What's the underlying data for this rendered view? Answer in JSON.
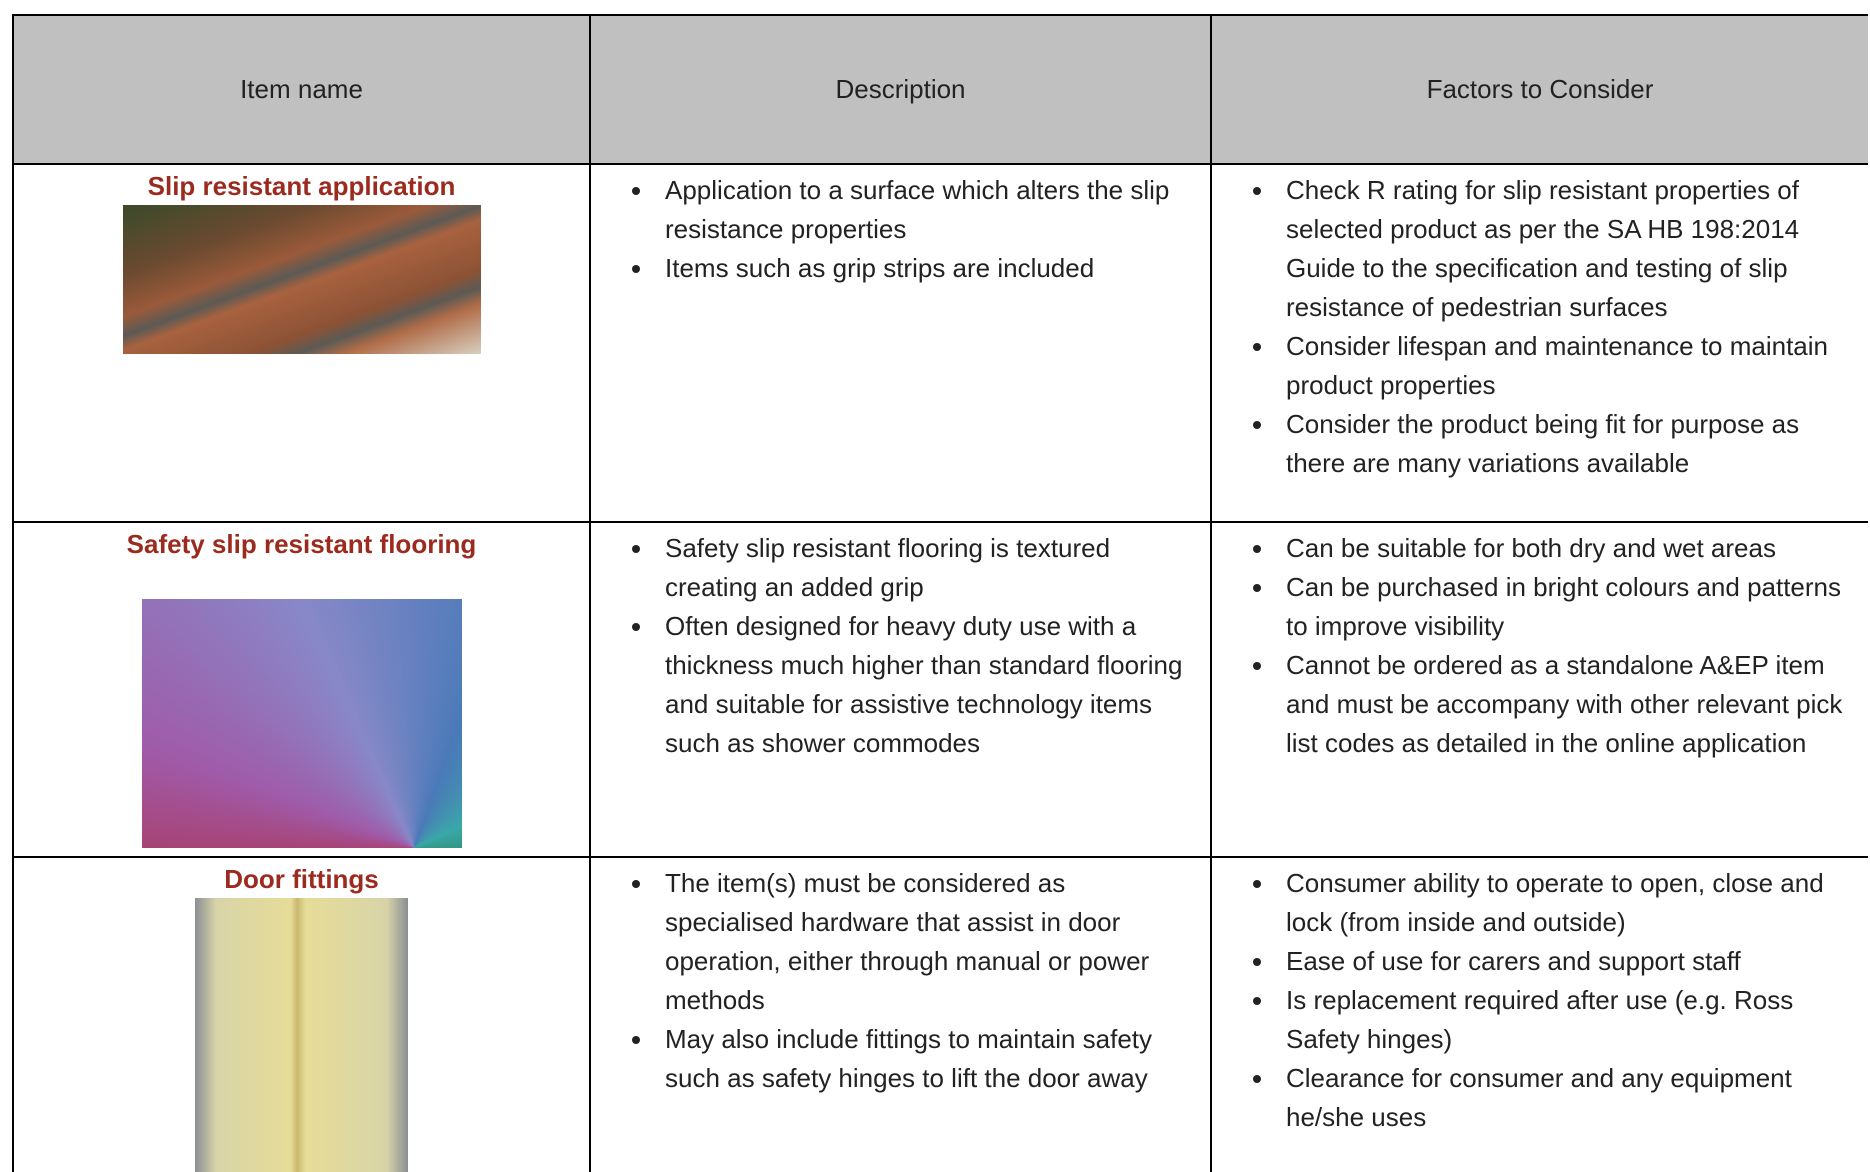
{
  "table": {
    "headers": [
      "Item name",
      "Description",
      "Factors to Consider"
    ],
    "rows": [
      {
        "name": "Slip resistant application",
        "description": [
          "Application to a surface which alters the slip resistance properties",
          "Items such as grip strips are included"
        ],
        "factors": [
          "Check R rating for slip resistant properties of selected product as per the SA HB 198:2014 Guide to the specification and testing of slip resistance of pedestrian surfaces",
          "Consider lifespan and maintenance to maintain product properties",
          "Consider the product being fit for purpose as there are many variations available"
        ]
      },
      {
        "name": "Safety slip resistant flooring",
        "description": [
          "Safety slip resistant flooring is textured creating an added grip",
          "Often designed for heavy duty use with a thickness much higher than standard flooring and suitable for assistive technology items such as shower commodes"
        ],
        "factors": [
          "Can be suitable for both dry and wet areas",
          "Can be purchased in bright colours and patterns to improve visibility",
          "Cannot be ordered as a standalone A&EP item and must be accompany with other relevant pick list codes as detailed in the online application"
        ]
      },
      {
        "name": "Door fittings",
        "description": [
          "The item(s) must be considered as specialised hardware that assist in door operation, either through manual or power methods",
          "May also include fittings to maintain safety such as safety hinges to lift the door away"
        ],
        "factors": [
          "Consumer ability to operate to open, close and lock (from inside and outside)",
          "Ease of use for carers and support staff",
          "Is replacement required after use (e.g. Ross Safety hinges)",
          "Clearance for consumer and any equipment he/she uses"
        ]
      }
    ]
  }
}
